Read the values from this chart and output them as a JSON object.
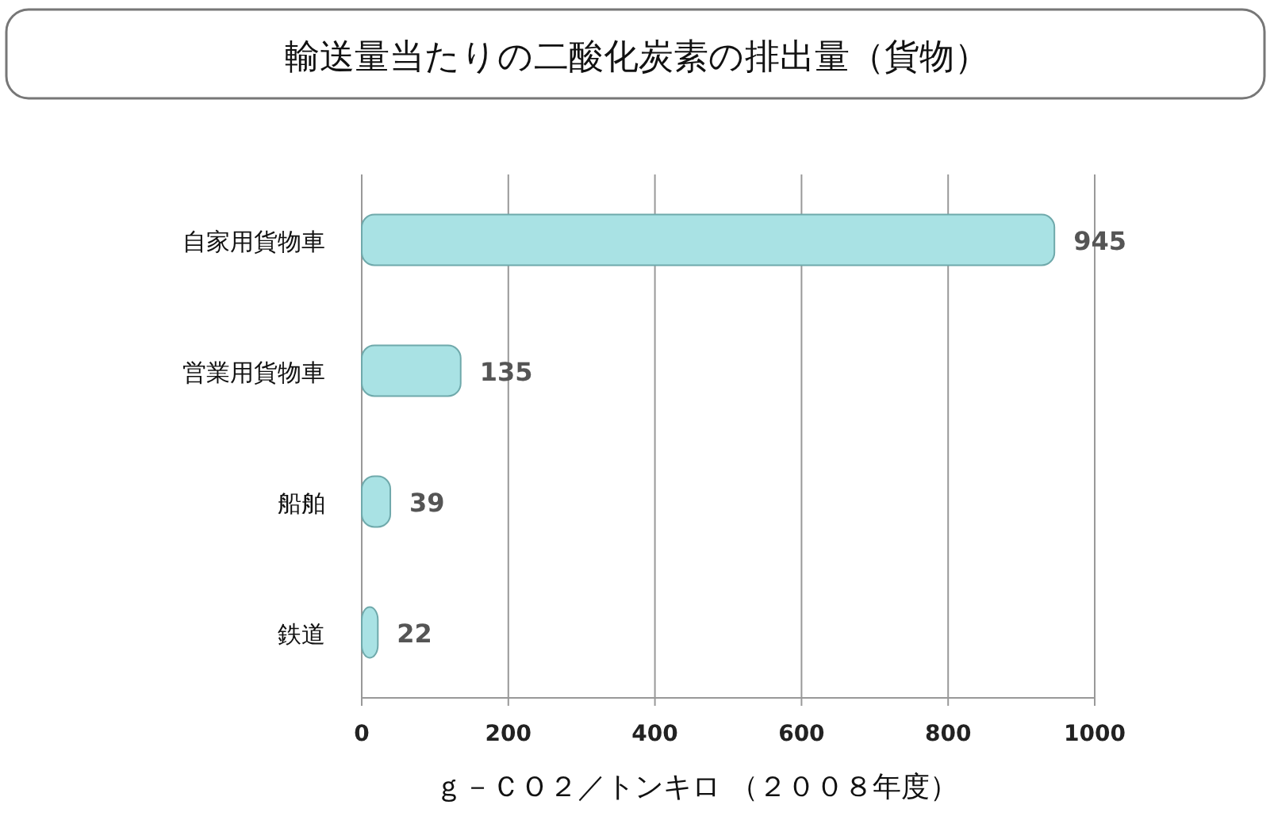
{
  "chart_data": {
    "type": "bar",
    "orientation": "horizontal",
    "title": "輸送量当たりの二酸化炭素の排出量（貨物）",
    "xlabel": "ｇ－ＣＯ２／トンキロ （２００８年度）",
    "categories": [
      "自家用貨物車",
      "営業用貨物車",
      "船舶",
      "鉄道"
    ],
    "values": [
      945,
      135,
      39,
      22
    ],
    "color": "#a9e2e4",
    "xlim": [
      0,
      1000
    ],
    "xticks": [
      0,
      200,
      400,
      600,
      800,
      1000
    ],
    "grid": "x",
    "data_labels": true
  }
}
